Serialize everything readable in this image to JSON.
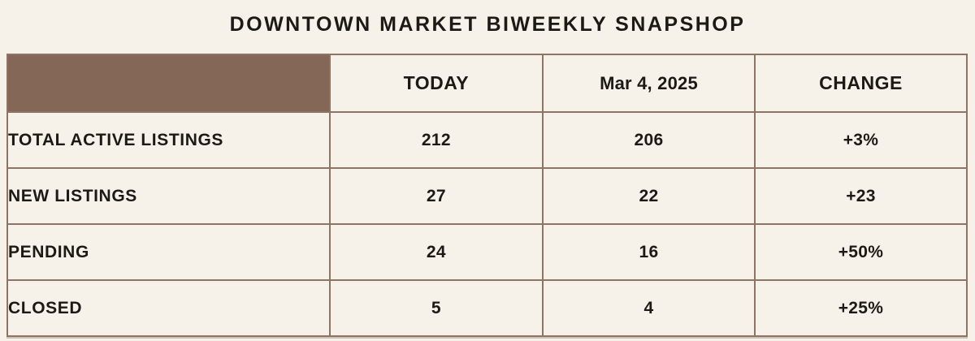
{
  "title": "DOWNTOWN MARKET BIWEEKLY SNAPSHOP",
  "table": {
    "columns": {
      "label": "",
      "today": "TODAY",
      "prior": "Mar 4, 2025",
      "change": "CHANGE"
    },
    "rows": [
      {
        "label": "TOTAL ACTIVE LISTINGS",
        "today": "212",
        "prior": "206",
        "change": "+3%"
      },
      {
        "label": "NEW LISTINGS",
        "today": "27",
        "prior": "22",
        "change": "+23"
      },
      {
        "label": "PENDING",
        "today": "24",
        "prior": "16",
        "change": "+50%"
      },
      {
        "label": "CLOSED",
        "today": "5",
        "prior": "4",
        "change": "+25%"
      }
    ]
  },
  "chart_data": {
    "type": "table",
    "title": "DOWNTOWN MARKET BIWEEKLY SNAPSHOP",
    "columns": [
      "",
      "TODAY",
      "Mar 4, 2025",
      "CHANGE"
    ],
    "categories": [
      "TOTAL ACTIVE LISTINGS",
      "NEW LISTINGS",
      "PENDING",
      "CLOSED"
    ],
    "series": [
      {
        "name": "TODAY",
        "values": [
          212,
          27,
          24,
          5
        ]
      },
      {
        "name": "Mar 4, 2025",
        "values": [
          206,
          22,
          16,
          4
        ]
      },
      {
        "name": "CHANGE",
        "values": [
          "+3%",
          "+23",
          "+50%",
          "+25%"
        ]
      }
    ]
  },
  "colors": {
    "bg": "#f7f2e9",
    "brown": "#846757",
    "border": "#8e7464",
    "text": "#1d1a15"
  }
}
